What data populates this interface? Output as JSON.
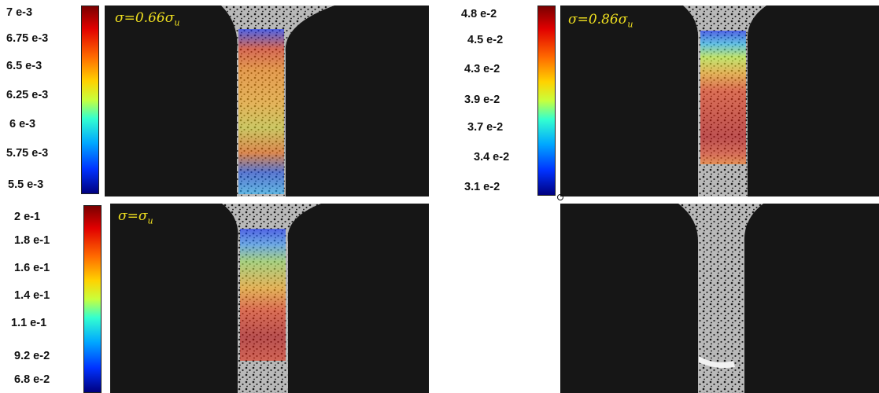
{
  "colors": {
    "panel_bg": "#161616",
    "label": "#f0e020",
    "colormap": "jet"
  },
  "panels": [
    {
      "id": "a",
      "label": {
        "prefix": "σ=0.66σ",
        "sub": "u"
      },
      "colorbar_ticks": [
        "7 e-3",
        "6.75 e-3",
        "6.5 e-3",
        "6.25 e-3",
        "6 e-3",
        "5.75 e-3",
        "5.5 e-3"
      ]
    },
    {
      "id": "b",
      "label": {
        "prefix": "σ=0.86σ",
        "sub": "u"
      },
      "colorbar_ticks": [
        "4.8 e-2",
        "4.5 e-2",
        "4.3 e-2",
        "3.9 e-2",
        "3.7 e-2",
        "3.4 e-2",
        "3.1 e-2"
      ]
    },
    {
      "id": "c",
      "label": {
        "prefix": "σ=σ",
        "sub": "u"
      },
      "colorbar_ticks": [
        "2 e-1",
        "1.8 e-1",
        "1.6 e-1",
        "1.4 e-1",
        "1.1 e-1",
        "9.2 e-2",
        "6.8 e-2"
      ]
    },
    {
      "id": "d",
      "label": null,
      "colorbar_ticks": []
    }
  ]
}
